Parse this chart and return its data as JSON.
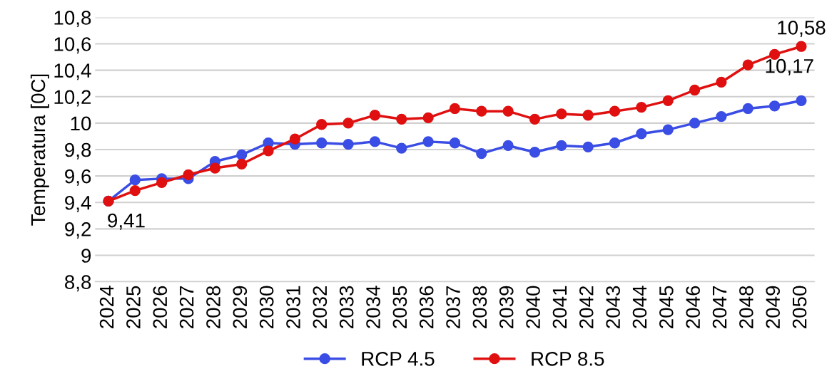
{
  "chart_data": {
    "type": "line",
    "ylabel": "Temperatura [0C]",
    "categories": [
      "2024",
      "2025",
      "2026",
      "2027",
      "2028",
      "2029",
      "2030",
      "2031",
      "2032",
      "2033",
      "2034",
      "2035",
      "2036",
      "2037",
      "2038",
      "2039",
      "2040",
      "2041",
      "2042",
      "2043",
      "2044",
      "2045",
      "2046",
      "2047",
      "2048",
      "2049",
      "2050"
    ],
    "series": [
      {
        "name": "RCP 4.5",
        "color": "#3a4de4",
        "values": [
          9.41,
          9.57,
          9.58,
          9.58,
          9.71,
          9.76,
          9.85,
          9.84,
          9.85,
          9.84,
          9.86,
          9.81,
          9.86,
          9.85,
          9.77,
          9.83,
          9.78,
          9.83,
          9.82,
          9.85,
          9.92,
          9.95,
          10.0,
          10.05,
          10.11,
          10.13,
          10.17
        ],
        "value_labels": [
          "9,41",
          null,
          null,
          null,
          null,
          null,
          null,
          null,
          null,
          null,
          null,
          null,
          null,
          null,
          null,
          null,
          null,
          null,
          null,
          null,
          null,
          null,
          null,
          null,
          null,
          null,
          "10,17"
        ]
      },
      {
        "name": "RCP 8.5",
        "color": "#e01010",
        "values": [
          9.41,
          9.49,
          9.55,
          9.61,
          9.66,
          9.69,
          9.79,
          9.88,
          9.99,
          10.0,
          10.06,
          10.03,
          10.04,
          10.11,
          10.09,
          10.09,
          10.03,
          10.07,
          10.06,
          10.09,
          10.12,
          10.17,
          10.25,
          10.31,
          10.44,
          10.52,
          10.58
        ],
        "value_labels": [
          null,
          null,
          null,
          null,
          null,
          null,
          null,
          null,
          null,
          null,
          null,
          null,
          null,
          null,
          null,
          null,
          null,
          null,
          null,
          null,
          null,
          null,
          null,
          null,
          null,
          null,
          "10,58"
        ]
      }
    ],
    "ylim": [
      8.8,
      10.8
    ],
    "yticks": [
      {
        "value": 8.8,
        "label": "8,8"
      },
      {
        "value": 9,
        "label": "9"
      },
      {
        "value": 9.2,
        "label": "9,2"
      },
      {
        "value": 9.4,
        "label": "9,4"
      },
      {
        "value": 9.6,
        "label": "9,6"
      },
      {
        "value": 9.8,
        "label": "9,8"
      },
      {
        "value": 10,
        "label": "10"
      },
      {
        "value": 10.2,
        "label": "10,2"
      },
      {
        "value": 10.4,
        "label": "10,4"
      },
      {
        "value": 10.6,
        "label": "10,6"
      },
      {
        "value": 10.8,
        "label": "10,8"
      }
    ],
    "grid": "y",
    "legend": "bottom",
    "marker": "circle",
    "line_style": "solid"
  }
}
